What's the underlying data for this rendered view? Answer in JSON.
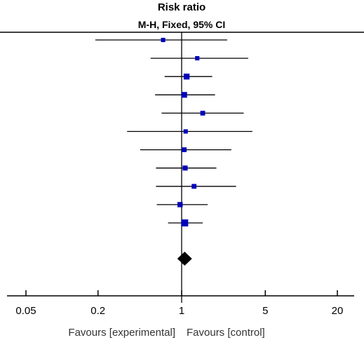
{
  "chart_data": {
    "type": "forest",
    "header": {
      "title": "Risk ratio",
      "method": "M-H, Fixed, 95% CI"
    },
    "x_scale": "log",
    "xlim": [
      0.05,
      20
    ],
    "x_ticks": [
      {
        "value": 0.05,
        "label": "0.05"
      },
      {
        "value": 0.2,
        "label": "0.2"
      },
      {
        "value": 1,
        "label": "1"
      },
      {
        "value": 5,
        "label": "5"
      },
      {
        "value": 20,
        "label": "20"
      }
    ],
    "null_value": 1,
    "favours_left": "Favours [experimental]",
    "favours_right": "Favours [control]",
    "studies": [
      {
        "estimate": 0.7,
        "lower": 0.19,
        "upper": 2.4,
        "weight": 0.2
      },
      {
        "estimate": 1.35,
        "lower": 0.55,
        "upper": 3.6,
        "weight": 0.2
      },
      {
        "estimate": 1.1,
        "lower": 0.72,
        "upper": 1.8,
        "weight": 0.6
      },
      {
        "estimate": 1.05,
        "lower": 0.6,
        "upper": 1.9,
        "weight": 0.55
      },
      {
        "estimate": 1.5,
        "lower": 0.68,
        "upper": 3.3,
        "weight": 0.3
      },
      {
        "estimate": 1.08,
        "lower": 0.35,
        "upper": 3.9,
        "weight": 0.2
      },
      {
        "estimate": 1.05,
        "lower": 0.45,
        "upper": 2.6,
        "weight": 0.3
      },
      {
        "estimate": 1.07,
        "lower": 0.61,
        "upper": 1.95,
        "weight": 0.35
      },
      {
        "estimate": 1.27,
        "lower": 0.61,
        "upper": 2.85,
        "weight": 0.3
      },
      {
        "estimate": 0.97,
        "lower": 0.62,
        "upper": 1.65,
        "weight": 0.4
      },
      {
        "estimate": 1.06,
        "lower": 0.77,
        "upper": 1.5,
        "weight": 1.0
      }
    ],
    "pooled": {
      "estimate": 1.06,
      "lower": 0.92,
      "upper": 1.22
    },
    "colors": {
      "study_marker": "#0000bb",
      "line": "#000000",
      "pooled_marker": "#000000"
    }
  }
}
